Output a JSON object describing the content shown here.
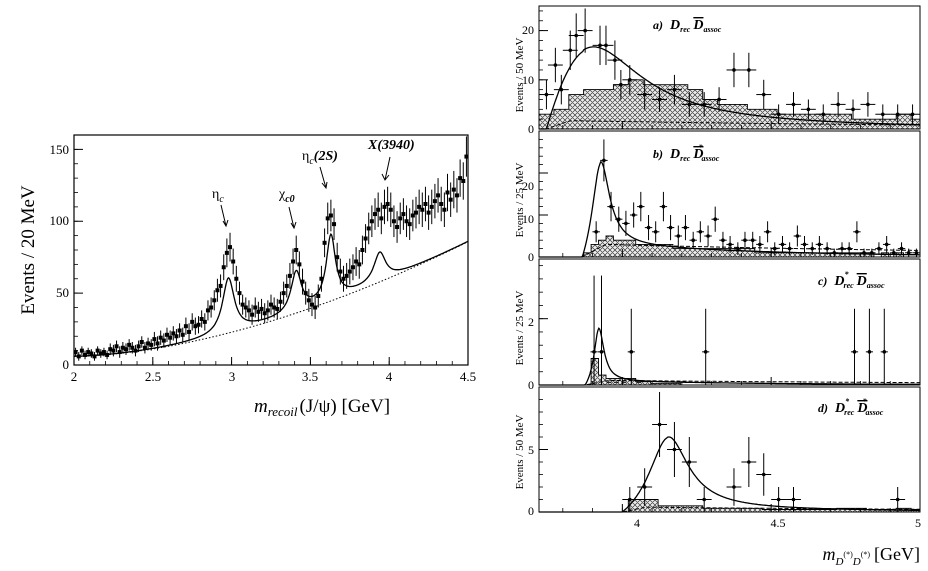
{
  "chart_data": [
    {
      "id": "left",
      "type": "line",
      "xlabel": "m_recoil(J/ψ) [GeV]",
      "xlabel_main": "m",
      "xlabel_sub": "recoil",
      "xlabel_tail": "(J/ψ) [GeV]",
      "ylabel": "Events / 20 MeV",
      "xlim": [
        2.0,
        4.5
      ],
      "ylim": [
        0,
        160
      ],
      "xticks": [
        2,
        2.5,
        3,
        3.5,
        4,
        4.5
      ],
      "xtick_labels": [
        "2",
        "2.5",
        "3",
        "3.5",
        "4",
        "4.5"
      ],
      "yticks": [
        0,
        50,
        100,
        150
      ],
      "ytick_labels": [
        "0",
        "50",
        "100",
        "150"
      ],
      "annotations": [
        {
          "key": "eta_c",
          "main": "η",
          "sub": "c",
          "tail": "",
          "x": 2.97,
          "y": 80
        },
        {
          "key": "chi_c0",
          "main": "χ",
          "sub": "c0",
          "tail": "",
          "x": 3.4,
          "y": 92
        },
        {
          "key": "eta_c2s",
          "main": "η",
          "sub": "c",
          "tail": "(2S)",
          "x": 3.62,
          "y": 120
        },
        {
          "key": "x3940",
          "main": "X(3940)",
          "sub": "",
          "tail": "",
          "x": 3.95,
          "y": 122
        }
      ],
      "fit_peaks": [
        {
          "x0": 2.98,
          "amp": 38,
          "gamma": 0.045
        },
        {
          "x0": 3.41,
          "amp": 28,
          "gamma": 0.04
        },
        {
          "x0": 3.63,
          "amp": 45,
          "gamma": 0.035
        },
        {
          "x0": 3.94,
          "amp": 20,
          "gamma": 0.045
        }
      ],
      "points": {
        "x": [
          2.01,
          2.03,
          2.05,
          2.07,
          2.09,
          2.11,
          2.13,
          2.15,
          2.17,
          2.19,
          2.21,
          2.23,
          2.25,
          2.27,
          2.29,
          2.31,
          2.33,
          2.35,
          2.37,
          2.39,
          2.41,
          2.43,
          2.45,
          2.47,
          2.49,
          2.51,
          2.53,
          2.55,
          2.57,
          2.59,
          2.61,
          2.63,
          2.65,
          2.67,
          2.69,
          2.71,
          2.73,
          2.75,
          2.77,
          2.79,
          2.81,
          2.83,
          2.85,
          2.87,
          2.89,
          2.91,
          2.93,
          2.95,
          2.97,
          2.99,
          3.01,
          3.03,
          3.05,
          3.07,
          3.09,
          3.11,
          3.13,
          3.15,
          3.17,
          3.19,
          3.21,
          3.23,
          3.25,
          3.27,
          3.29,
          3.31,
          3.33,
          3.35,
          3.37,
          3.39,
          3.41,
          3.43,
          3.45,
          3.47,
          3.49,
          3.51,
          3.53,
          3.55,
          3.57,
          3.59,
          3.61,
          3.63,
          3.65,
          3.67,
          3.69,
          3.71,
          3.73,
          3.75,
          3.77,
          3.79,
          3.81,
          3.83,
          3.85,
          3.87,
          3.89,
          3.91,
          3.93,
          3.95,
          3.97,
          3.99,
          4.01,
          4.03,
          4.05,
          4.07,
          4.09,
          4.11,
          4.13,
          4.15,
          4.17,
          4.19,
          4.21,
          4.23,
          4.25,
          4.27,
          4.29,
          4.31,
          4.33,
          4.35,
          4.37,
          4.39,
          4.41,
          4.43,
          4.45,
          4.47,
          4.49
        ],
        "y": [
          9,
          6,
          10,
          7,
          9,
          8,
          6,
          10,
          8,
          9,
          7,
          11,
          10,
          13,
          9,
          12,
          11,
          14,
          12,
          10,
          13,
          16,
          12,
          15,
          14,
          18,
          15,
          19,
          17,
          21,
          19,
          22,
          20,
          24,
          21,
          27,
          23,
          30,
          27,
          28,
          32,
          30,
          38,
          40,
          45,
          52,
          55,
          68,
          78,
          82,
          72,
          60,
          50,
          42,
          40,
          38,
          35,
          40,
          37,
          39,
          36,
          38,
          42,
          40,
          39,
          44,
          50,
          55,
          62,
          72,
          80,
          70,
          58,
          50,
          45,
          42,
          40,
          48,
          60,
          85,
          102,
          104,
          98,
          75,
          65,
          60,
          62,
          65,
          68,
          72,
          70,
          80,
          88,
          95,
          100,
          105,
          108,
          102,
          110,
          112,
          108,
          100,
          96,
          102,
          105,
          100,
          98,
          104,
          106,
          110,
          108,
          112,
          106,
          110,
          114,
          118,
          112,
          108,
          120,
          115,
          122,
          118,
          130,
          128,
          145
        ],
        "yerr": [
          3,
          3,
          3,
          3,
          3,
          3,
          3,
          3,
          3,
          3,
          3,
          4,
          4,
          4,
          4,
          4,
          4,
          4,
          4,
          4,
          4,
          4,
          4,
          4,
          4,
          5,
          5,
          5,
          5,
          5,
          5,
          5,
          5,
          5,
          5,
          6,
          6,
          6,
          6,
          6,
          6,
          6,
          7,
          7,
          7,
          8,
          8,
          9,
          10,
          10,
          9,
          9,
          8,
          7,
          7,
          7,
          7,
          7,
          7,
          7,
          7,
          7,
          7,
          7,
          7,
          7,
          8,
          8,
          9,
          9,
          10,
          9,
          9,
          8,
          8,
          8,
          8,
          8,
          9,
          10,
          11,
          11,
          11,
          10,
          9,
          9,
          9,
          9,
          9,
          10,
          10,
          10,
          10,
          11,
          11,
          11,
          12,
          11,
          12,
          12,
          12,
          11,
          11,
          11,
          11,
          11,
          11,
          11,
          11,
          12,
          12,
          12,
          12,
          12,
          12,
          12,
          12,
          12,
          13,
          12,
          13,
          12,
          13,
          13,
          14
        ]
      }
    },
    {
      "id": "ra",
      "type": "line",
      "ylabel": "Events / 50 MeV",
      "title": {
        "letter": "a)",
        "main1": "D",
        "sub1": "rec",
        "sup1": "",
        "bar": "D",
        "sub2": "assoc",
        "sup2": ""
      },
      "xlim": [
        3.72,
        5.0
      ],
      "ylim": [
        0,
        25
      ],
      "yticks": [
        0,
        10,
        20
      ],
      "ytick_labels": [
        "0",
        "10",
        "20"
      ],
      "xticks": [
        4,
        4.5,
        5
      ],
      "xtick_labels": [],
      "fit": {
        "kind": "threshold",
        "x0": 3.745,
        "peak": 3.87,
        "amp": 17,
        "width": 0.22,
        "tail": 1.6
      },
      "hist_step": 0.05,
      "hist": [
        3,
        4,
        7,
        8,
        8,
        9,
        10,
        9,
        9,
        9,
        8,
        6,
        5,
        5,
        4,
        4,
        3,
        3,
        3,
        3,
        3,
        2,
        2,
        2,
        3,
        2
      ],
      "points": {
        "x": [
          3.745,
          3.775,
          3.795,
          3.825,
          3.845,
          3.875,
          3.925,
          3.945,
          3.975,
          3.995,
          4.025,
          4.075,
          4.125,
          4.175,
          4.225,
          4.275,
          4.325,
          4.375,
          4.425,
          4.475,
          4.525,
          4.575,
          4.625,
          4.675,
          4.725,
          4.775,
          4.825,
          4.875,
          4.925,
          4.975
        ],
        "y": [
          7,
          13,
          8,
          16,
          19,
          20,
          17,
          17,
          14,
          9,
          10,
          7,
          6,
          8,
          5,
          5,
          6,
          12,
          12,
          7,
          3,
          5,
          4,
          3,
          5,
          4,
          5,
          3,
          3,
          3
        ],
        "yerr": [
          3,
          3.5,
          3,
          4,
          4.5,
          4.5,
          4,
          4,
          4,
          3,
          3,
          3,
          2.5,
          3,
          2.5,
          2.5,
          2.5,
          3.5,
          3.5,
          3,
          2,
          2.5,
          2,
          2,
          2.5,
          2,
          2.5,
          2,
          2,
          2
        ]
      }
    },
    {
      "id": "rb",
      "type": "line",
      "ylabel": "Events / 25 MeV",
      "title": {
        "letter": "b)",
        "main1": "D",
        "sub1": "rec",
        "sup1": "",
        "bar": "D",
        "sub2": "assoc",
        "sup2": "*"
      },
      "xlim": [
        3.72,
        5.0
      ],
      "ylim": [
        0,
        30
      ],
      "yticks": [
        0,
        10,
        20
      ],
      "ytick_labels": [
        "0",
        "10",
        "20"
      ],
      "xticks": [
        4,
        4.5,
        5
      ],
      "xtick_labels": [],
      "fit": {
        "kind": "threshold",
        "x0": 3.865,
        "peak": 3.925,
        "amp": 23,
        "width": 0.035,
        "tail": 3.0
      },
      "hist_step": 0.025,
      "hist": [
        0,
        0,
        0,
        0,
        0,
        0,
        1,
        3,
        4,
        5,
        4,
        4,
        4,
        3,
        3,
        3,
        3,
        3,
        2,
        2,
        2,
        2,
        2,
        2,
        2,
        2,
        2,
        2,
        2,
        1,
        1,
        1,
        1,
        1,
        1,
        1,
        1,
        1,
        1,
        1,
        1,
        1,
        1,
        1,
        1,
        0,
        1,
        0,
        1,
        0,
        0
      ],
      "points": {
        "x": [
          3.912,
          3.938,
          3.962,
          3.988,
          4.012,
          4.038,
          4.062,
          4.088,
          4.112,
          4.138,
          4.162,
          4.188,
          4.212,
          4.238,
          4.262,
          4.288,
          4.312,
          4.338,
          4.362,
          4.388,
          4.412,
          4.438,
          4.462,
          4.488,
          4.512,
          4.538,
          4.562,
          4.588,
          4.612,
          4.638,
          4.662,
          4.688,
          4.712,
          4.738,
          4.762,
          4.788,
          4.812,
          4.838,
          4.862,
          4.888,
          4.912,
          4.938,
          4.962,
          4.988
        ],
        "y": [
          6,
          23,
          12,
          9,
          8,
          10,
          12,
          7,
          6,
          12,
          7,
          5,
          7,
          4,
          6,
          5,
          9,
          4,
          3,
          2,
          4,
          4,
          3,
          6,
          2,
          3,
          2,
          5,
          3,
          2,
          3,
          2,
          1,
          2,
          2,
          6,
          1,
          1,
          2,
          3,
          1,
          2,
          1,
          1
        ],
        "yerr": [
          2.5,
          5,
          3.5,
          3,
          3,
          3,
          3.5,
          3,
          2.5,
          3.5,
          3,
          2.5,
          3,
          2,
          2.5,
          2.5,
          3,
          2,
          2,
          1.5,
          2,
          2,
          2,
          2.5,
          1.5,
          2,
          1.5,
          2.5,
          2,
          1.5,
          2,
          1.5,
          1,
          1.5,
          1.5,
          2.5,
          1,
          1,
          1.5,
          2,
          1,
          1.5,
          1,
          1
        ]
      }
    },
    {
      "id": "rc",
      "type": "line",
      "ylabel": "Events / 25 MeV",
      "title": {
        "letter": "c)",
        "main1": "D",
        "sub1": "rec",
        "sup1": "*",
        "bar": "D",
        "sub2": "assoc",
        "sup2": ""
      },
      "xlim": [
        3.72,
        5.0
      ],
      "ylim": [
        0,
        3.8
      ],
      "yticks": [
        0,
        2
      ],
      "ytick_labels": [
        "0",
        "2"
      ],
      "xticks": [
        4,
        4.5,
        5
      ],
      "xtick_labels": [],
      "fit": {
        "kind": "threshold",
        "x0": 3.875,
        "peak": 3.92,
        "amp": 1.85,
        "width": 0.02,
        "tail": 0.12
      },
      "hist_step": 0.025,
      "hist": [
        0,
        0,
        0,
        0,
        0,
        0,
        0,
        0.8,
        0.3,
        0.2,
        0.2,
        0.2,
        0.2,
        0.1,
        0.1,
        0.05,
        0.05,
        0.05,
        0.05,
        0,
        0,
        0,
        0,
        0,
        0,
        0,
        0,
        0,
        0,
        0,
        0,
        0,
        0,
        0,
        0,
        0,
        0,
        0,
        0,
        0,
        0,
        0,
        0,
        0,
        0,
        0,
        0,
        0,
        0,
        0,
        0
      ],
      "points": {
        "x": [
          3.905,
          3.93,
          4.03,
          4.28,
          4.78,
          4.83,
          4.88
        ],
        "y": [
          1,
          1,
          1,
          1,
          1,
          1,
          1
        ],
        "yerr": [
          2.3,
          2.3,
          1.3,
          1.3,
          1.3,
          1.3,
          1.3
        ],
        "xerr": [
          0.012,
          0.012,
          0.012,
          0.012,
          0.012,
          0.012,
          0.012
        ]
      },
      "mini_points": [
        3.955,
        3.98,
        4.005,
        4.055
      ]
    },
    {
      "id": "rd",
      "type": "line",
      "ylabel": "Events / 50 MeV",
      "title": {
        "letter": "d)",
        "main1": "D",
        "sub1": "rec",
        "sup1": "*",
        "bar": "D",
        "sub2": "assoc",
        "sup2": "*"
      },
      "xlim": [
        3.72,
        5.0
      ],
      "ylim": [
        0,
        10
      ],
      "yticks": [
        0,
        5
      ],
      "ytick_labels": [
        "0",
        "5"
      ],
      "xticks": [
        4,
        4.5,
        5
      ],
      "xtick_labels": [
        "4",
        "4.5",
        "5"
      ],
      "xlabel": "m_D(*)D(*) [GeV]",
      "xlabel_main": "m",
      "xlabel_sub": "D",
      "xlabel_sup1": "(*)",
      "xlabel_sub2": "D",
      "xlabel_sup2": "(*)",
      "xlabel_tail": "[GeV]",
      "fit": {
        "kind": "threshold",
        "x0": 4.0,
        "peak": 4.15,
        "amp": 6.6,
        "width": 0.08,
        "tail": 0.3
      },
      "hist_step": 0.05,
      "hist": [
        0,
        0,
        0,
        0,
        0,
        0,
        1,
        1,
        0.5,
        0.5,
        0.5,
        0.3,
        0.3,
        0.3,
        0.3,
        0.2,
        0.2,
        0.2,
        0.2,
        0.2,
        0.3,
        0.3,
        0.2,
        0.2,
        0.3,
        0.2
      ],
      "points": {
        "x": [
          4.025,
          4.075,
          4.125,
          4.175,
          4.225,
          4.275,
          4.375,
          4.425,
          4.475,
          4.525,
          4.575,
          4.925
        ],
        "y": [
          1,
          2,
          7,
          5,
          4,
          1,
          2,
          4,
          3,
          1,
          1,
          1
        ],
        "yerr": [
          1,
          1.5,
          2.6,
          2.2,
          2,
          1,
          1.5,
          2,
          1.7,
          1,
          1,
          1
        ]
      }
    }
  ]
}
